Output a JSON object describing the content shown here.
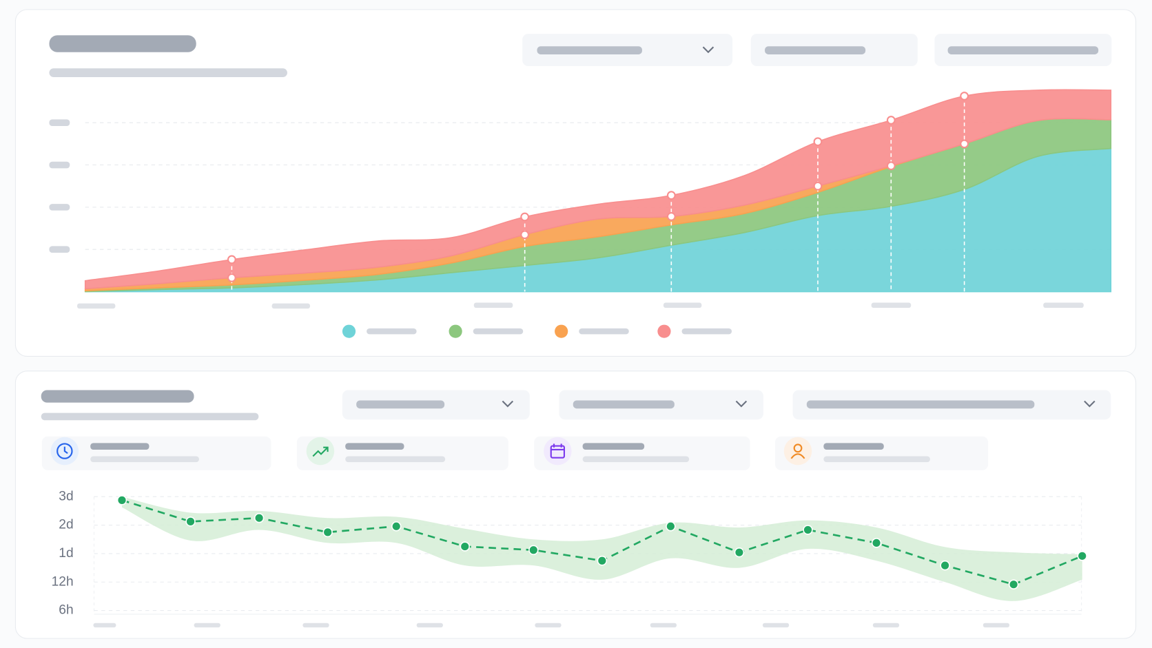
{
  "chart_data": [
    {
      "type": "stacked-area",
      "categories": [
        null,
        null,
        null,
        null,
        null,
        null,
        null,
        null,
        null,
        null,
        null,
        null,
        null,
        null,
        null
      ],
      "series": [
        {
          "color": "#6fd3d8",
          "values": [
            0,
            0.05,
            0.09,
            0.17,
            0.28,
            0.45,
            0.62,
            0.8,
            1.1,
            1.4,
            1.8,
            2.02,
            2.42,
            3.2,
            3.39
          ]
        },
        {
          "color": "#8cc77e",
          "values": [
            0.02,
            0.04,
            0.07,
            0.1,
            0.13,
            0.23,
            0.45,
            0.5,
            0.48,
            0.45,
            0.55,
            0.94,
            1.08,
            0.85,
            0.68
          ]
        },
        {
          "color": "#f9a250",
          "values": [
            0.05,
            0.1,
            0.17,
            0.17,
            0.17,
            0.17,
            0.28,
            0.42,
            0.2,
            0.2,
            0.15,
            0.02,
            0,
            0,
            0
          ]
        },
        {
          "color": "#f88e8e",
          "values": [
            0.19,
            0.3,
            0.43,
            0.55,
            0.62,
            0.43,
            0.42,
            0.35,
            0.5,
            0.7,
            1.05,
            1.08,
            1.13,
            0.72,
            0.7
          ]
        }
      ],
      "ylim": [
        0,
        5
      ],
      "yticks": [
        1,
        2,
        3,
        4
      ],
      "grid": true
    },
    {
      "type": "line",
      "categories": [
        null,
        null,
        null,
        null,
        null,
        null,
        null,
        null,
        null,
        null,
        null,
        null,
        null,
        null,
        null
      ],
      "series": [
        {
          "color": "#22a862",
          "values": [
            69,
            51,
            54,
            42,
            47,
            30,
            27,
            21,
            47,
            25,
            44,
            33,
            19,
            11.5,
            23
          ]
        }
      ],
      "band": {
        "color": "#d5edd6",
        "high": [
          72,
          58.5,
          60,
          54,
          55,
          45,
          36,
          36,
          50,
          46,
          52,
          46,
          29.5,
          25,
          23.7
        ],
        "low": [
          63,
          35,
          44,
          33,
          33,
          19,
          19,
          13,
          22,
          18,
          28,
          21,
          12,
          8,
          13
        ]
      },
      "ylim": [
        6,
        72
      ],
      "yticks": [
        {
          "value": 72,
          "label": "3d"
        },
        {
          "value": 48,
          "label": "2d"
        },
        {
          "value": 24,
          "label": "1d"
        },
        {
          "value": 12,
          "label": "12h"
        },
        {
          "value": 6,
          "label": "6h"
        }
      ],
      "grid": true
    }
  ]
}
